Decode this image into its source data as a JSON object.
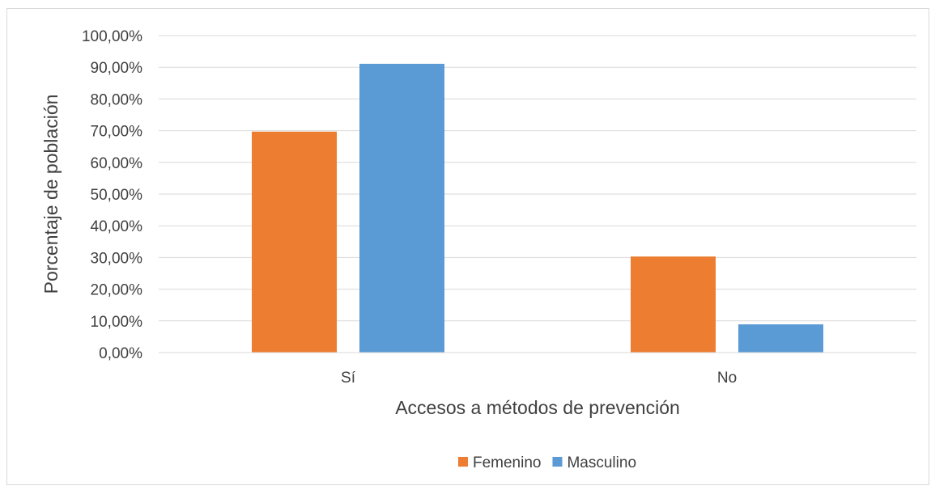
{
  "chart_data": {
    "type": "bar",
    "categories": [
      "Sí",
      "No"
    ],
    "series": [
      {
        "name": "Femenino",
        "values": [
          0.697,
          0.303
        ],
        "color": "#ED7D31"
      },
      {
        "name": "Masculino",
        "values": [
          0.911,
          0.089
        ],
        "color": "#5B9BD5"
      }
    ],
    "xlabel": "Accesos a métodos de prevención",
    "ylabel": "Porcentaje de población",
    "ylim": [
      0,
      1
    ],
    "yticks": [
      "0,00%",
      "10,00%",
      "20,00%",
      "30,00%",
      "40,00%",
      "50,00%",
      "60,00%",
      "70,00%",
      "80,00%",
      "90,00%",
      "100,00%"
    ],
    "grid": true,
    "legend_position": "bottom"
  }
}
